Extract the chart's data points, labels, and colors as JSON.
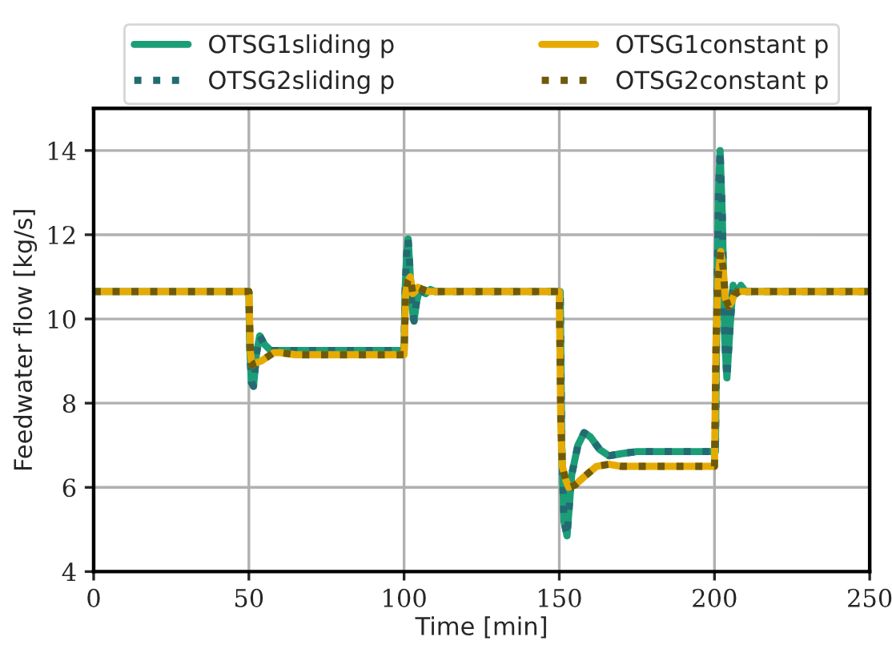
{
  "chart_data": {
    "type": "line",
    "xlabel": "Time [min]",
    "ylabel": "Feedwater flow [kg/s]",
    "xlim": [
      0,
      250
    ],
    "xticks": [
      0,
      50,
      100,
      150,
      200,
      250
    ],
    "ylim": [
      4,
      15
    ],
    "yticks": [
      4,
      6,
      8,
      10,
      12,
      14
    ],
    "grid": true,
    "legend": "top",
    "marker": "none",
    "series": [
      {
        "name": "OTSG1sliding p",
        "color": "#1b9e77",
        "line_style": "solid",
        "x": [
          0,
          50,
          50.3,
          50.8,
          51.5,
          52.5,
          53.5,
          55,
          57,
          60,
          70,
          100,
          100.3,
          100.8,
          101.3,
          101.8,
          102.5,
          103.2,
          104,
          105,
          107,
          108.5,
          110,
          120,
          150,
          150.3,
          150.8,
          151.5,
          152.5,
          154,
          156,
          158,
          160,
          163,
          166,
          170,
          175,
          180,
          200,
          200.3,
          200.8,
          201.3,
          201.8,
          202.5,
          203.3,
          204,
          205,
          206,
          207,
          208.5,
          210,
          220,
          250
        ],
        "values": [
          10.65,
          10.65,
          9.3,
          8.5,
          8.4,
          9.2,
          9.6,
          9.4,
          9.25,
          9.25,
          9.25,
          9.25,
          10.6,
          11.5,
          11.9,
          11.3,
          10.3,
          9.95,
          10.4,
          10.7,
          10.6,
          10.7,
          10.65,
          10.65,
          10.65,
          10.65,
          7.0,
          5.2,
          4.85,
          6.3,
          7.0,
          7.3,
          7.2,
          6.9,
          6.75,
          6.8,
          6.85,
          6.85,
          6.85,
          6.85,
          10.5,
          13.0,
          14.0,
          12.5,
          9.5,
          8.6,
          9.8,
          10.8,
          10.6,
          10.8,
          10.65,
          10.65,
          10.65
        ]
      },
      {
        "name": "OTSG2sliding p",
        "color": "#236b72",
        "line_style": "dotted",
        "x": [
          0,
          50,
          50.3,
          50.8,
          51.5,
          52.5,
          53.5,
          55,
          57,
          60,
          70,
          100,
          100.3,
          100.8,
          101.3,
          101.8,
          102.5,
          103.2,
          104,
          105,
          107,
          108.5,
          110,
          120,
          150,
          150.3,
          150.8,
          151.5,
          152.5,
          154,
          156,
          158,
          160,
          163,
          166,
          170,
          175,
          180,
          200,
          200.3,
          200.8,
          201.3,
          201.8,
          202.5,
          203.3,
          204,
          205,
          206,
          207,
          208.5,
          210,
          220,
          250
        ],
        "values": [
          10.65,
          10.65,
          9.3,
          8.5,
          8.4,
          9.2,
          9.6,
          9.4,
          9.25,
          9.25,
          9.25,
          9.25,
          10.6,
          11.5,
          11.9,
          11.3,
          10.3,
          9.95,
          10.4,
          10.7,
          10.6,
          10.7,
          10.65,
          10.65,
          10.65,
          10.65,
          7.0,
          5.2,
          4.85,
          6.3,
          7.0,
          7.3,
          7.2,
          6.9,
          6.75,
          6.8,
          6.85,
          6.85,
          6.85,
          6.85,
          10.5,
          13.0,
          14.0,
          12.5,
          9.5,
          8.6,
          9.8,
          10.8,
          10.6,
          10.8,
          10.65,
          10.65,
          10.65
        ]
      },
      {
        "name": "OTSG1constant p",
        "color": "#e6ab02",
        "line_style": "solid",
        "x": [
          0,
          50,
          50.5,
          51,
          52,
          54,
          56,
          58,
          60,
          65,
          70,
          100,
          100.5,
          101.2,
          102,
          102.8,
          103.5,
          104.5,
          106,
          108,
          110,
          150,
          150.5,
          151,
          152,
          153,
          155,
          158,
          162,
          166,
          170,
          175,
          180,
          200,
          200.5,
          201.2,
          202,
          202.8,
          203.5,
          204.5,
          205.5,
          206.5,
          208,
          210,
          250
        ],
        "values": [
          10.65,
          10.65,
          9.2,
          8.9,
          8.95,
          9.0,
          9.1,
          9.2,
          9.2,
          9.15,
          9.15,
          9.15,
          10.6,
          10.9,
          11.0,
          10.6,
          10.65,
          10.75,
          10.7,
          10.65,
          10.65,
          10.65,
          7.5,
          6.5,
          6.2,
          6.0,
          6.05,
          6.25,
          6.5,
          6.55,
          6.5,
          6.5,
          6.5,
          6.5,
          9.5,
          11.0,
          11.6,
          11.2,
          10.5,
          10.3,
          10.4,
          10.6,
          10.65,
          10.65,
          10.65
        ]
      },
      {
        "name": "OTSG2constant p",
        "color": "#6e5a0c",
        "line_style": "dotted",
        "x": [
          0,
          50,
          50.5,
          51,
          52,
          54,
          56,
          58,
          60,
          65,
          70,
          100,
          100.5,
          101.2,
          102,
          102.8,
          103.5,
          104.5,
          106,
          108,
          110,
          150,
          150.5,
          151,
          152,
          153,
          155,
          158,
          162,
          166,
          170,
          175,
          180,
          200,
          200.5,
          201.2,
          202,
          202.8,
          203.5,
          204.5,
          205.5,
          206.5,
          208,
          210,
          250
        ],
        "values": [
          10.65,
          10.65,
          9.2,
          8.9,
          8.95,
          9.0,
          9.1,
          9.2,
          9.2,
          9.15,
          9.15,
          9.15,
          10.6,
          10.9,
          11.0,
          10.6,
          10.65,
          10.75,
          10.7,
          10.65,
          10.65,
          10.65,
          7.5,
          6.5,
          6.2,
          6.0,
          6.05,
          6.25,
          6.5,
          6.55,
          6.5,
          6.5,
          6.5,
          6.5,
          9.5,
          11.0,
          11.6,
          11.2,
          10.5,
          10.3,
          10.4,
          10.6,
          10.65,
          10.65,
          10.65
        ]
      }
    ]
  }
}
